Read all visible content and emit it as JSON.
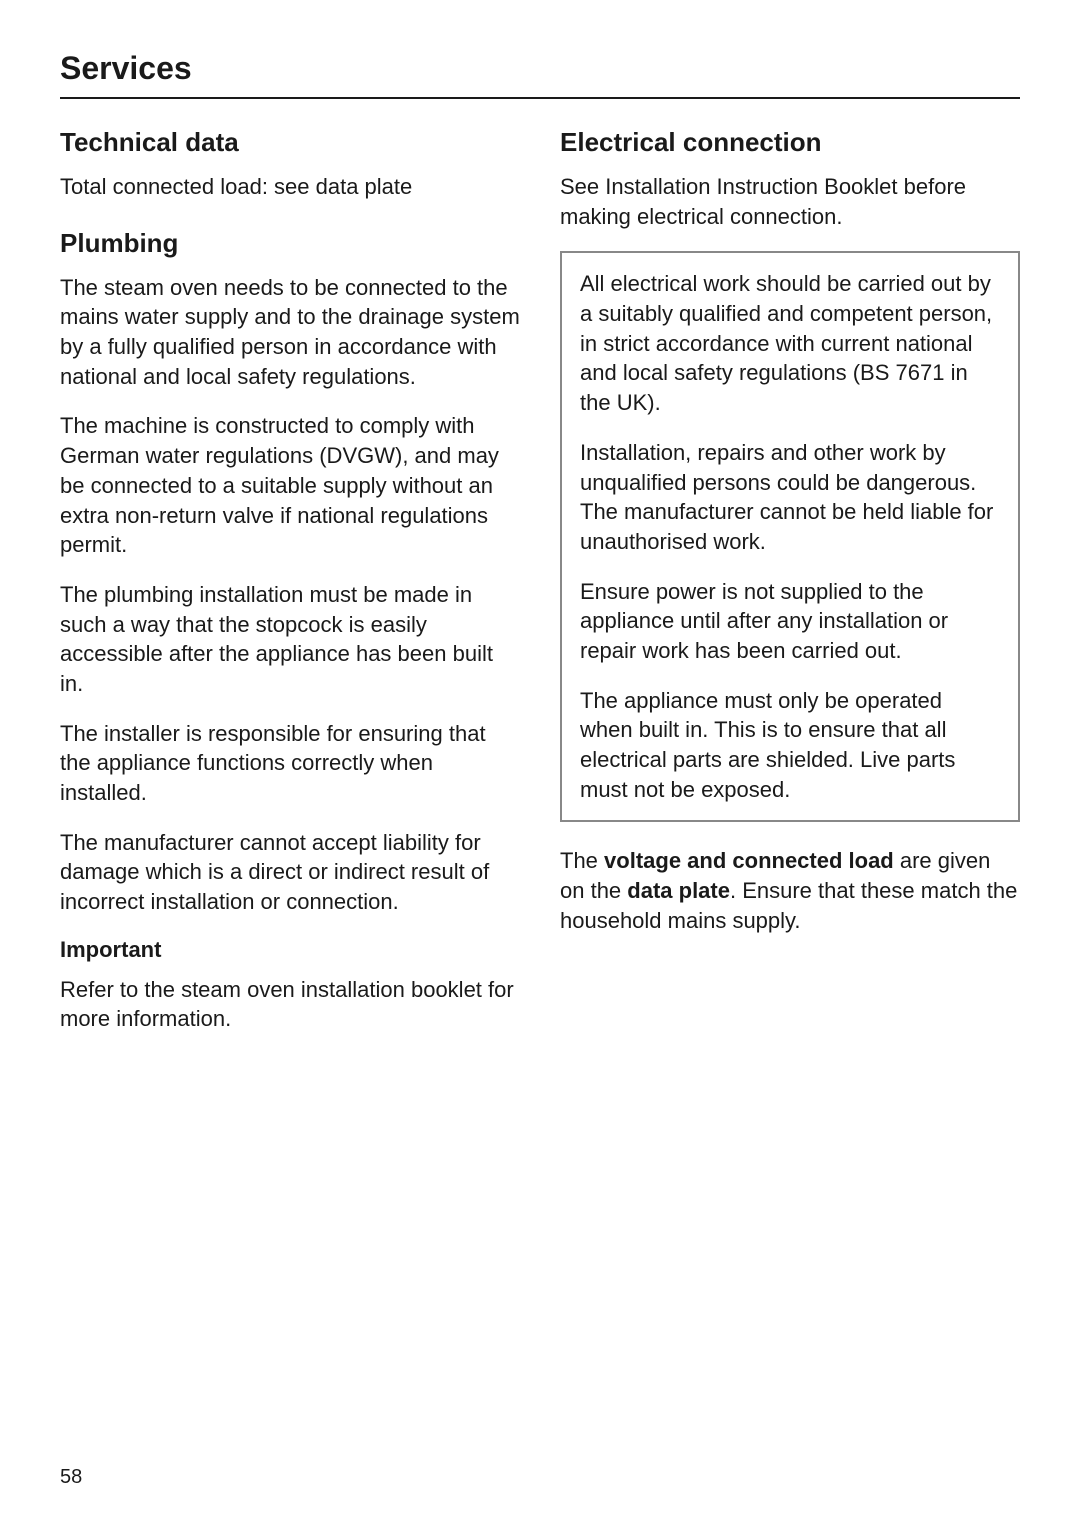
{
  "page": {
    "title": "Services",
    "number": "58"
  },
  "left": {
    "technical_data": {
      "heading": "Technical data",
      "p1": "Total connected load: see data plate"
    },
    "plumbing": {
      "heading": "Plumbing",
      "p1": "The steam oven needs to be connected to the mains water supply and to the drainage system by a fully qualified person in accordance with national and local safety regulations.",
      "p2": "The machine is constructed to comply with German water regulations (DVGW), and may be connected to a suitable supply without an extra non-return valve if national regulations permit.",
      "p3": "The plumbing installation must be made in such a way that the stopcock is easily accessible after the appliance has been built in.",
      "p4": "The installer is responsible for ensuring that the appliance functions correctly when installed.",
      "p5": "The manufacturer cannot accept liability for damage which is a direct or indirect result of incorrect installation or connection."
    },
    "important": {
      "heading": "Important",
      "p1": "Refer to the steam oven installation booklet for more information."
    }
  },
  "right": {
    "electrical": {
      "heading": "Electrical connection",
      "p1": "See Installation Instruction Booklet before making electrical connection.",
      "box": {
        "p1": "All electrical work should be carried out by a suitably qualified and competent person, in strict accordance with current national and local safety regulations (BS 7671 in the UK).",
        "p2": "Installation, repairs and other work by unqualified persons could be dangerous. The manufacturer cannot be held liable for unauthorised work.",
        "p3": "Ensure power is not supplied to the appliance until after any installation or repair work has been carried out.",
        "p4": "The appliance must only be operated when built in. This is to ensure that all electrical parts are shielded. Live parts must not be exposed."
      },
      "closing": {
        "t1": "The ",
        "b1": "voltage and connected load",
        "t2": " are given on the ",
        "b2": "data plate",
        "t3": ". Ensure that these match the household mains supply."
      }
    }
  }
}
